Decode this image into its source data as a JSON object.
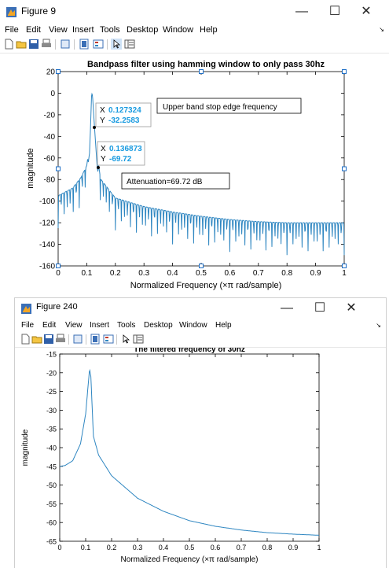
{
  "figure1": {
    "window_title": "Figure 9",
    "menu": [
      "File",
      "Edit",
      "View",
      "Insert",
      "Tools",
      "Desktop",
      "Window",
      "Help"
    ],
    "controls": {
      "minimize": "—",
      "maximize": "☐",
      "close": "✕",
      "menu_arrow": "↘"
    },
    "toolbar_icons": [
      "new-file-icon",
      "open-folder-icon",
      "save-icon",
      "print-icon",
      "print-preview-icon",
      "link-plot-icon",
      "insert-colorbar-icon",
      "pointer-icon",
      "property-editor-icon"
    ],
    "datatip1": {
      "x_label": "X",
      "x_value": "0.127324",
      "y_label": "Y",
      "y_value": "-32.2583"
    },
    "datatip2": {
      "x_label": "X",
      "x_value": "0.136873",
      "y_label": "Y",
      "y_value": "-69.72"
    },
    "annotation1": "Upper band stop edge frequency",
    "annotation2": "Attenuation=69.72 dB"
  },
  "figure2": {
    "window_title": "Figure 240",
    "menu": [
      "File",
      "Edit",
      "View",
      "Insert",
      "Tools",
      "Desktop",
      "Window",
      "Help"
    ],
    "controls": {
      "minimize": "—",
      "maximize": "☐",
      "close": "✕",
      "menu_arrow": "↘"
    },
    "toolbar_icons": [
      "new-file-icon",
      "open-folder-icon",
      "save-icon",
      "print-icon",
      "print-preview-icon",
      "link-plot-icon",
      "insert-colorbar-icon",
      "pointer-icon",
      "property-editor-icon"
    ]
  },
  "chart_data": [
    {
      "type": "line",
      "title": "Bandpass filter using hamming window to only pass 30hz",
      "xlabel": "Normalized Frequency  (×π rad/sample)",
      "ylabel": "magnitude",
      "xlim": [
        0,
        1
      ],
      "ylim": [
        -160,
        20
      ],
      "xticks": [
        "0",
        "0.1",
        "0.2",
        "0.3",
        "0.4",
        "0.5",
        "0.6",
        "0.7",
        "0.8",
        "0.9",
        "1"
      ],
      "yticks": [
        "20",
        "0",
        "-20",
        "-40",
        "-60",
        "-80",
        "-100",
        "-120",
        "-140",
        "-160"
      ],
      "line_color": "#2e86c1",
      "series": [
        {
          "x": [
            0,
            0.05,
            0.08,
            0.1,
            0.11,
            0.117,
            0.12,
            0.127324,
            0.136873,
            0.15,
            0.2,
            0.3,
            0.4,
            0.5,
            0.6,
            0.7,
            0.8,
            0.9,
            1
          ],
          "values": [
            -103,
            -96,
            -86,
            -75,
            -55,
            0,
            -2,
            -32.2583,
            -69.72,
            -88,
            -105,
            -113,
            -118,
            -122,
            -125,
            -127,
            -128,
            -128,
            -128
          ]
        }
      ]
    },
    {
      "type": "line",
      "title": "The filtered frequency of 30hz",
      "xlabel": "Normalized Frequency  (×π rad/sample)",
      "ylabel": "magnitude",
      "xlim": [
        0,
        1
      ],
      "ylim": [
        -65,
        -15
      ],
      "xticks": [
        "0",
        "0.1",
        "0.2",
        "0.3",
        "0.4",
        "0.5",
        "0.6",
        "0.7",
        "0.8",
        "0.9",
        "1"
      ],
      "yticks": [
        "-15",
        "-20",
        "-25",
        "-30",
        "-35",
        "-40",
        "-45",
        "-50",
        "-55",
        "-60",
        "-65"
      ],
      "line_color": "#2e86c1",
      "series": [
        {
          "x": [
            0,
            0.02,
            0.05,
            0.08,
            0.1,
            0.11,
            0.115,
            0.12,
            0.13,
            0.15,
            0.2,
            0.3,
            0.4,
            0.5,
            0.6,
            0.7,
            0.8,
            0.9,
            1
          ],
          "values": [
            -45,
            -44.8,
            -43.5,
            -39,
            -31,
            -23,
            -19,
            -21,
            -37,
            -42,
            -47.5,
            -53.5,
            -57,
            -59.5,
            -61,
            -62,
            -62.7,
            -63.1,
            -63.4
          ]
        }
      ]
    }
  ]
}
